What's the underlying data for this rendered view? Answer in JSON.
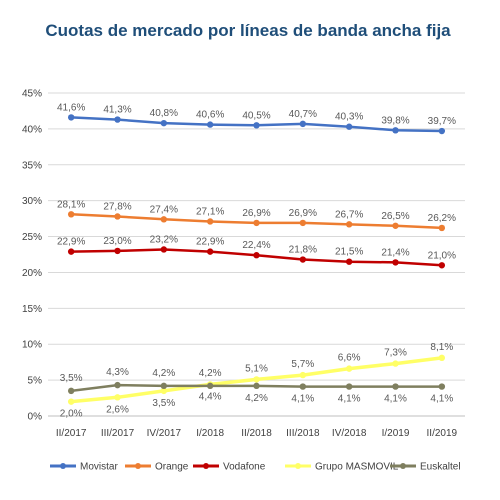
{
  "chart_data": {
    "type": "line",
    "title": "Cuotas de mercado por líneas de banda ancha fija",
    "categories": [
      "II/2017",
      "III/2017",
      "IV/2017",
      "I/2018",
      "II/2018",
      "III/2018",
      "IV/2018",
      "I/2019",
      "II/2019"
    ],
    "ylim": [
      0,
      45
    ],
    "y_ticks": [
      "0%",
      "5%",
      "10%",
      "15%",
      "20%",
      "25%",
      "30%",
      "35%",
      "40%",
      "45%"
    ],
    "y_tick_values": [
      0,
      5,
      10,
      15,
      20,
      25,
      30,
      35,
      40,
      45
    ],
    "grid": true,
    "legend_position": "bottom",
    "series": [
      {
        "name": "Movistar",
        "color": "#4472C4",
        "values": [
          41.6,
          41.3,
          40.8,
          40.6,
          40.5,
          40.7,
          40.3,
          39.8,
          39.7
        ],
        "labels": [
          "41,6%",
          "41,3%",
          "40,8%",
          "40,6%",
          "40,5%",
          "40,7%",
          "40,3%",
          "39,8%",
          "39,7%"
        ]
      },
      {
        "name": "Orange",
        "color": "#ED7D31",
        "values": [
          28.1,
          27.8,
          27.4,
          27.1,
          26.9,
          26.9,
          26.7,
          26.5,
          26.2
        ],
        "labels": [
          "28,1%",
          "27,8%",
          "27,4%",
          "27,1%",
          "26,9%",
          "26,9%",
          "26,7%",
          "26,5%",
          "26,2%"
        ]
      },
      {
        "name": "Vodafone",
        "color": "#C00000",
        "values": [
          22.9,
          23.0,
          23.2,
          22.9,
          22.4,
          21.8,
          21.5,
          21.4,
          21.0
        ],
        "labels": [
          "22,9%",
          "23,0%",
          "23,2%",
          "22,9%",
          "22,4%",
          "21,8%",
          "21,5%",
          "21,4%",
          "21,0%"
        ]
      },
      {
        "name": "Grupo MASMOVIL",
        "color": "#FFFF66",
        "values": [
          2.0,
          2.6,
          3.5,
          4.4,
          5.1,
          5.7,
          6.6,
          7.3,
          8.1
        ],
        "labels": [
          "2,0%",
          "2,6%",
          "3,5%",
          "4,4%",
          "5,1%",
          "5,7%",
          "6,6%",
          "7,3%",
          "8,1%"
        ]
      },
      {
        "name": "Euskaltel",
        "color": "#7F7F5F",
        "values": [
          3.5,
          4.3,
          4.2,
          4.2,
          4.2,
          4.1,
          4.1,
          4.1,
          4.1
        ],
        "labels": [
          "3,5%",
          "4,3%",
          "4,2%",
          "4,2%",
          "4,2%",
          "4,1%",
          "4,1%",
          "4,1%",
          "4,1%"
        ]
      }
    ]
  }
}
